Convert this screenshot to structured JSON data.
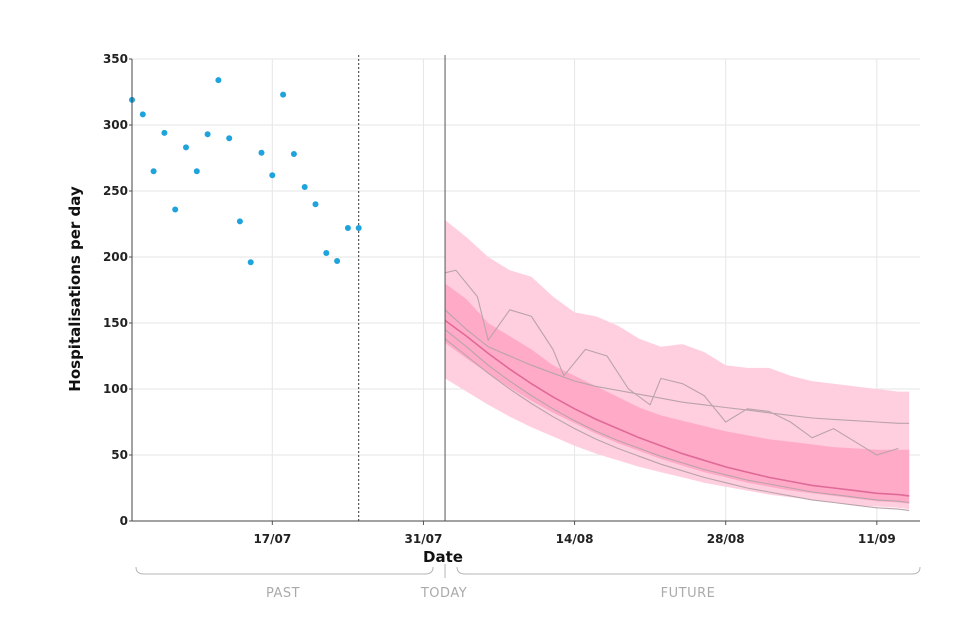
{
  "chart_data": {
    "type": "scatter",
    "title": "",
    "xlabel": "Date",
    "ylabel": "Hospitalisations per day",
    "x_axis": {
      "type": "date",
      "range": [
        "2021-07-04",
        "2021-09-15"
      ],
      "ticks": [
        {
          "date": "2021-07-17",
          "label": "17/07"
        },
        {
          "date": "2021-07-31",
          "label": "31/07"
        },
        {
          "date": "2021-08-14",
          "label": "14/08"
        },
        {
          "date": "2021-08-28",
          "label": "28/08"
        },
        {
          "date": "2021-09-11",
          "label": "11/09"
        }
      ]
    },
    "y_axis": {
      "range": [
        0,
        350
      ],
      "ticks": [
        0,
        50,
        100,
        150,
        200,
        250,
        300,
        350
      ]
    },
    "grid": true,
    "legend": "none",
    "colors": {
      "observed": "#1fa3dc",
      "band_outer": "#ffcfe0",
      "band_inner": "#ffabc8",
      "median": "#e06a97",
      "trajectory": "#b9a3ab"
    },
    "markers": {
      "last_data_date": "2021-07-25",
      "today_date": "2021-08-02"
    },
    "observed": {
      "x": [
        "2021-07-04",
        "2021-07-05",
        "2021-07-06",
        "2021-07-07",
        "2021-07-08",
        "2021-07-09",
        "2021-07-10",
        "2021-07-11",
        "2021-07-12",
        "2021-07-13",
        "2021-07-14",
        "2021-07-15",
        "2021-07-16",
        "2021-07-17",
        "2021-07-18",
        "2021-07-19",
        "2021-07-20",
        "2021-07-21",
        "2021-07-22",
        "2021-07-23",
        "2021-07-24",
        "2021-07-25"
      ],
      "y": [
        319,
        308,
        265,
        294,
        236,
        283,
        265,
        293,
        334,
        290,
        227,
        196,
        279,
        262,
        323,
        278,
        253,
        240,
        203,
        197,
        222,
        222
      ]
    },
    "forecast": {
      "x": [
        "2021-08-02",
        "2021-08-04",
        "2021-08-06",
        "2021-08-08",
        "2021-08-10",
        "2021-08-12",
        "2021-08-14",
        "2021-08-16",
        "2021-08-18",
        "2021-08-20",
        "2021-08-22",
        "2021-08-24",
        "2021-08-26",
        "2021-08-28",
        "2021-08-30",
        "2021-09-01",
        "2021-09-03",
        "2021-09-05",
        "2021-09-07",
        "2021-09-09",
        "2021-09-11",
        "2021-09-13",
        "2021-09-14"
      ],
      "outer_lower": [
        108,
        98,
        88,
        79,
        71,
        64,
        57,
        51,
        46,
        41,
        37,
        33,
        29,
        26,
        23,
        20,
        18,
        16,
        14,
        12,
        11,
        10,
        9
      ],
      "outer_upper": [
        228,
        215,
        200,
        190,
        185,
        170,
        158,
        155,
        148,
        138,
        132,
        134,
        128,
        118,
        116,
        116,
        110,
        106,
        104,
        102,
        100,
        98,
        98
      ],
      "inner_lower": [
        135,
        123,
        112,
        101,
        91,
        82,
        74,
        66,
        59,
        53,
        47,
        42,
        37,
        33,
        29,
        26,
        23,
        21,
        19,
        17,
        15,
        14,
        13
      ],
      "inner_upper": [
        180,
        168,
        150,
        140,
        130,
        118,
        110,
        102,
        94,
        86,
        80,
        76,
        72,
        68,
        65,
        62,
        60,
        58,
        56,
        55,
        54,
        54,
        54
      ],
      "median": [
        152,
        140,
        127,
        115,
        104,
        94,
        85,
        77,
        70,
        63,
        57,
        51,
        46,
        41,
        37,
        33,
        30,
        27,
        25,
        23,
        21,
        20,
        19
      ]
    },
    "trajectories": [
      {
        "x": [
          "2021-08-02",
          "2021-08-03",
          "2021-08-05",
          "2021-08-06",
          "2021-08-08",
          "2021-08-10",
          "2021-08-12",
          "2021-08-13",
          "2021-08-15",
          "2021-08-17",
          "2021-08-19",
          "2021-08-21",
          "2021-08-22",
          "2021-08-24",
          "2021-08-26",
          "2021-08-28",
          "2021-08-30",
          "2021-09-01",
          "2021-09-03",
          "2021-09-05",
          "2021-09-07",
          "2021-09-09",
          "2021-09-11",
          "2021-09-13"
        ],
        "y": [
          188,
          190,
          170,
          137,
          160,
          155,
          130,
          110,
          130,
          125,
          100,
          88,
          108,
          104,
          95,
          75,
          85,
          83,
          75,
          63,
          70,
          60,
          50,
          55
        ]
      },
      {
        "x": [
          "2021-08-02",
          "2021-08-04",
          "2021-08-06",
          "2021-08-08",
          "2021-08-10",
          "2021-08-12",
          "2021-08-14",
          "2021-08-16",
          "2021-08-18",
          "2021-08-20",
          "2021-08-22",
          "2021-08-24",
          "2021-08-26",
          "2021-08-28",
          "2021-08-30",
          "2021-09-01",
          "2021-09-03",
          "2021-09-05",
          "2021-09-07",
          "2021-09-09",
          "2021-09-11",
          "2021-09-13",
          "2021-09-14"
        ],
        "y": [
          160,
          145,
          132,
          125,
          118,
          112,
          106,
          102,
          99,
          96,
          93,
          90,
          88,
          86,
          84,
          82,
          80,
          78,
          77,
          76,
          75,
          74,
          74
        ]
      },
      {
        "x": [
          "2021-08-02",
          "2021-08-04",
          "2021-08-06",
          "2021-08-08",
          "2021-08-10",
          "2021-08-12",
          "2021-08-14",
          "2021-08-16",
          "2021-08-18",
          "2021-08-20",
          "2021-08-22",
          "2021-08-24",
          "2021-08-26",
          "2021-08-28",
          "2021-08-30",
          "2021-09-01",
          "2021-09-03",
          "2021-09-05",
          "2021-09-07",
          "2021-09-09",
          "2021-09-11",
          "2021-09-13",
          "2021-09-14"
        ],
        "y": [
          145,
          132,
          118,
          106,
          95,
          85,
          76,
          68,
          61,
          55,
          49,
          44,
          39,
          35,
          31,
          28,
          25,
          22,
          20,
          18,
          16,
          15,
          14
        ]
      },
      {
        "x": [
          "2021-08-02",
          "2021-08-04",
          "2021-08-06",
          "2021-08-08",
          "2021-08-10",
          "2021-08-12",
          "2021-08-14",
          "2021-08-16",
          "2021-08-18",
          "2021-08-20",
          "2021-08-22",
          "2021-08-24",
          "2021-08-26",
          "2021-08-28",
          "2021-08-30",
          "2021-09-01",
          "2021-09-03",
          "2021-09-05",
          "2021-09-07",
          "2021-09-09",
          "2021-09-11",
          "2021-09-13",
          "2021-09-14"
        ],
        "y": [
          138,
          125,
          112,
          100,
          89,
          79,
          70,
          62,
          55,
          49,
          43,
          38,
          33,
          29,
          25,
          22,
          19,
          16,
          14,
          12,
          10,
          9,
          8
        ]
      }
    ],
    "period_labels": {
      "past": "PAST",
      "today": "TODAY",
      "future": "FUTURE"
    }
  }
}
